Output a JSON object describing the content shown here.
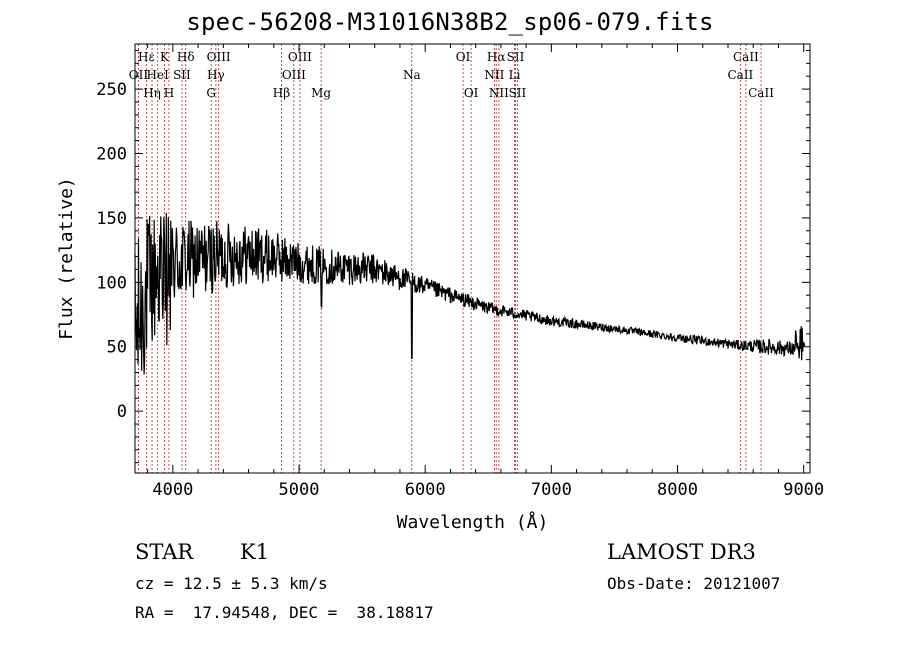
{
  "chart_data": {
    "type": "line",
    "title": "spec-56208-M31016N38B2_sp06-079.fits",
    "xlabel": "Wavelength (Å)",
    "ylabel": "Flux (relative)",
    "xlim": [
      3700,
      9050
    ],
    "ylim": [
      -48,
      285
    ],
    "x_ticks": [
      4000,
      5000,
      6000,
      7000,
      8000,
      9000
    ],
    "x_tick_labels": [
      "4000",
      "5000",
      "6000",
      "7000",
      "8000",
      "9000"
    ],
    "y_ticks": [
      0,
      50,
      100,
      150,
      200,
      250
    ],
    "y_tick_labels": [
      "0",
      "50",
      "100",
      "150",
      "200",
      "250"
    ],
    "line_color": "#000000",
    "marker_color": "#b22222",
    "spectrum_trend": [
      {
        "x": 3700,
        "y": 60,
        "noise": 70
      },
      {
        "x": 3800,
        "y": 95,
        "noise": 60
      },
      {
        "x": 3900,
        "y": 110,
        "noise": 50
      },
      {
        "x": 4000,
        "y": 115,
        "noise": 35
      },
      {
        "x": 4200,
        "y": 118,
        "noise": 30
      },
      {
        "x": 4500,
        "y": 122,
        "noise": 25
      },
      {
        "x": 4800,
        "y": 120,
        "noise": 20
      },
      {
        "x": 5000,
        "y": 115,
        "noise": 16
      },
      {
        "x": 5300,
        "y": 112,
        "noise": 14
      },
      {
        "x": 5600,
        "y": 110,
        "noise": 12
      },
      {
        "x": 5900,
        "y": 100,
        "noise": 8
      },
      {
        "x": 6200,
        "y": 90,
        "noise": 6
      },
      {
        "x": 6500,
        "y": 80,
        "noise": 5
      },
      {
        "x": 7000,
        "y": 70,
        "noise": 4
      },
      {
        "x": 7500,
        "y": 64,
        "noise": 3
      },
      {
        "x": 8000,
        "y": 57,
        "noise": 3
      },
      {
        "x": 8500,
        "y": 51,
        "noise": 4
      },
      {
        "x": 8700,
        "y": 50,
        "noise": 6
      },
      {
        "x": 8950,
        "y": 48,
        "noise": 6
      },
      {
        "x": 9010,
        "y": 45,
        "noise": 10
      }
    ],
    "line_markers": [
      {
        "label": "Hε",
        "x": 3790,
        "row": 0
      },
      {
        "label": "OII",
        "x": 3727,
        "row": 1
      },
      {
        "label": "Hη",
        "x": 3835,
        "row": 2
      },
      {
        "label": "HeI",
        "x": 3880,
        "row": 1
      },
      {
        "label": "K",
        "x": 3934,
        "row": 0
      },
      {
        "label": "H",
        "x": 3969,
        "row": 2
      },
      {
        "label": "Hδ",
        "x": 4102,
        "row": 0
      },
      {
        "label": "SII",
        "x": 4072,
        "row": 1
      },
      {
        "label": "OIII",
        "x": 4363,
        "row": 0
      },
      {
        "label": "Hγ",
        "x": 4341,
        "row": 1
      },
      {
        "label": "G",
        "x": 4304,
        "row": 2
      },
      {
        "label": "Hβ",
        "x": 4861,
        "row": 2
      },
      {
        "label": "OIII",
        "x": 5007,
        "row": 0
      },
      {
        "label": "OIII",
        "x": 4959,
        "row": 1
      },
      {
        "label": "Mg",
        "x": 5175,
        "row": 2
      },
      {
        "label": "Na",
        "x": 5894,
        "row": 1
      },
      {
        "label": "OI",
        "x": 6300,
        "row": 0
      },
      {
        "label": "OI",
        "x": 6364,
        "row": 2
      },
      {
        "label": "Hα",
        "x": 6563,
        "row": 0
      },
      {
        "label": "SII",
        "x": 6716,
        "row": 0
      },
      {
        "label": "NII",
        "x": 6548,
        "row": 1
      },
      {
        "label": "Li",
        "x": 6708,
        "row": 1
      },
      {
        "label": "NII",
        "x": 6584,
        "row": 2
      },
      {
        "label": "SII",
        "x": 6731,
        "row": 2
      },
      {
        "label": "CaII",
        "x": 8542,
        "row": 0
      },
      {
        "label": "CaII",
        "x": 8498,
        "row": 1
      },
      {
        "label": "CaII",
        "x": 8662,
        "row": 2
      }
    ]
  },
  "info": {
    "class": "STAR",
    "subclass": "K1",
    "survey": "LAMOST DR3",
    "cz": "cz = 12.5 ± 5.3 km/s",
    "obs_date": "Obs-Date: 20121007",
    "coords": "RA =  17.94548, DEC =  38.18817"
  }
}
